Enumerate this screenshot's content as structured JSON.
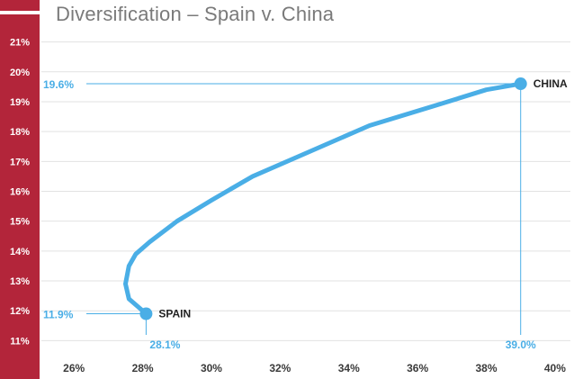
{
  "chart_data": {
    "type": "line",
    "title": "Diversification – Spain v. China",
    "xlabel": "",
    "ylabel": "",
    "xlim": [
      25,
      40.5
    ],
    "ylim": [
      10.5,
      21.5
    ],
    "x_ticks": [
      "26%",
      "28%",
      "30%",
      "32%",
      "34%",
      "36%",
      "38%",
      "40%"
    ],
    "x_tick_values": [
      26,
      28,
      30,
      32,
      34,
      36,
      38,
      40
    ],
    "y_ticks": [
      "11%",
      "12%",
      "13%",
      "14%",
      "15%",
      "16%",
      "17%",
      "18%",
      "19%",
      "20%",
      "21%"
    ],
    "y_tick_values": [
      11,
      12,
      13,
      14,
      15,
      16,
      17,
      18,
      19,
      20,
      21
    ],
    "grid": "horizontal",
    "series": [
      {
        "x": [
          28.1,
          27.6,
          27.5,
          27.6,
          27.8,
          28.2,
          29.0,
          30.0,
          31.2,
          32.8,
          34.6,
          36.6,
          38.0,
          39.0
        ],
        "y": [
          11.9,
          12.4,
          12.9,
          13.5,
          13.9,
          14.3,
          15.0,
          15.7,
          16.5,
          17.3,
          18.2,
          18.9,
          19.4,
          19.6
        ],
        "color": "#4aaee6"
      }
    ],
    "points": [
      {
        "label": "SPAIN",
        "x": 28.1,
        "y": 11.9,
        "x_text": "28.1%",
        "y_text": "11.9%"
      },
      {
        "label": "CHINA",
        "x": 39.0,
        "y": 19.6,
        "x_text": "39.0%",
        "y_text": "19.6%"
      }
    ],
    "colors": {
      "accent": "#4aaee6",
      "sidebar": "#b3253a",
      "grid": "#e2e2e2"
    }
  }
}
